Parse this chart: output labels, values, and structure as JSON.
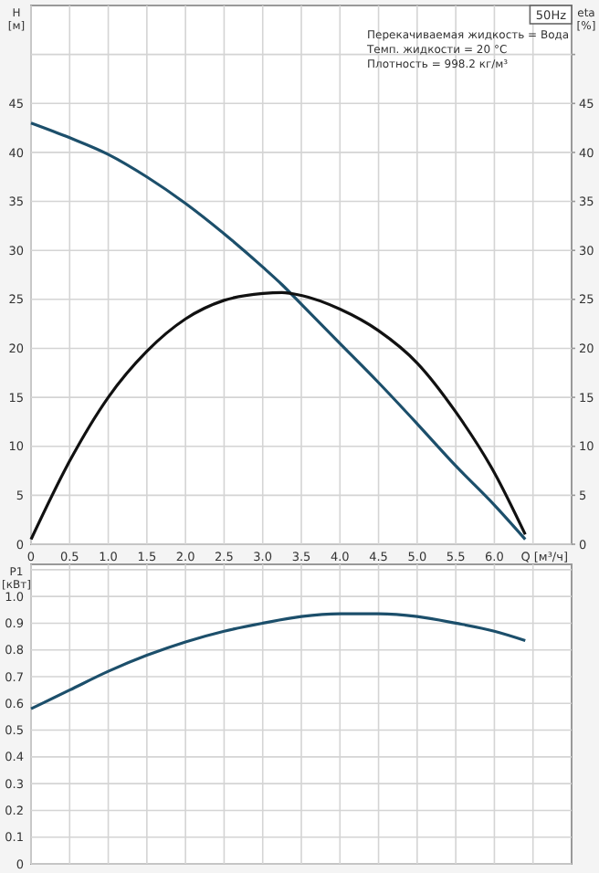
{
  "chart_data": [
    {
      "type": "line",
      "xlabel": "Q [м³/ч]",
      "ylabel": "H [м]",
      "y2label": "eta [%]",
      "annotations": [
        "50Hz",
        "Перекачиваемая жидкость = Вода",
        "Темп. жидкости = 20 °C",
        "Плотность = 998.2 кг/м³"
      ],
      "x": [
        0,
        0.5,
        1,
        1.5,
        2,
        2.5,
        3,
        3.25,
        3.5,
        4,
        4.5,
        5,
        5.5,
        6,
        6.4
      ],
      "series": [
        {
          "color": "#1c4f6b",
          "values": [
            43,
            41.5,
            39.8,
            37.5,
            34.8,
            31.7,
            28.3,
            26.5,
            24.5,
            20.5,
            16.5,
            12.3,
            8,
            4,
            0.5
          ]
        },
        {
          "color": "#111111",
          "axis": "y2",
          "values": [
            0.5,
            8.5,
            15,
            19.7,
            23,
            24.9,
            25.6,
            25.7,
            25.4,
            24,
            21.8,
            18.5,
            13.5,
            7.3,
            1
          ]
        }
      ],
      "xlim": [
        0,
        7
      ],
      "ylim": [
        0,
        55
      ],
      "y2lim": [
        0,
        55
      ],
      "xticks": [
        0,
        0.5,
        {
          "value": 1,
          "label": "1.0"
        },
        1.5,
        {
          "value": 2,
          "label": "2.0"
        },
        2.5,
        {
          "value": 3,
          "label": "3.0"
        },
        3.5,
        {
          "value": 4,
          "label": "4.0"
        },
        4.5,
        {
          "value": 5,
          "label": "5.0"
        },
        5.5,
        {
          "value": 6,
          "label": "6.0"
        },
        {
          "value": 6.5,
          "label": null
        }
      ],
      "yticks": [
        0,
        5,
        10,
        15,
        20,
        25,
        30,
        35,
        40,
        45,
        {
          "value": 50,
          "label": null
        }
      ],
      "y2ticks": [
        0,
        5,
        10,
        15,
        20,
        25,
        30,
        35,
        40,
        45,
        {
          "value": 50,
          "label": null
        }
      ],
      "grid": true,
      "marker": "none",
      "line_style": "solid"
    },
    {
      "type": "line",
      "ylabel": "P1 [кВт]",
      "x": [
        0,
        0.5,
        1,
        1.5,
        2,
        2.5,
        3,
        3.5,
        4,
        4.5,
        5,
        5.5,
        6,
        6.4
      ],
      "series": [
        {
          "color": "#1c4f6b",
          "values": [
            0.58,
            0.65,
            0.72,
            0.78,
            0.83,
            0.87,
            0.9,
            0.925,
            0.935,
            0.935,
            0.925,
            0.9,
            0.87,
            0.835
          ]
        }
      ],
      "xlim": [
        0,
        7
      ],
      "ylim": [
        0,
        1.12
      ],
      "xticks": [
        0,
        0.5,
        1,
        1.5,
        2,
        2.5,
        3,
        3.5,
        4,
        4.5,
        5,
        5.5,
        6,
        6.5
      ],
      "yticks": [
        0,
        0.1,
        0.2,
        0.3,
        0.4,
        0.5,
        0.6,
        0.7,
        0.8,
        0.9,
        {
          "value": 1,
          "label": "1.0"
        },
        {
          "value": 1.1,
          "label": null
        }
      ],
      "tick_labels": "y",
      "grid": true,
      "marker": "none",
      "line_style": "solid"
    }
  ]
}
